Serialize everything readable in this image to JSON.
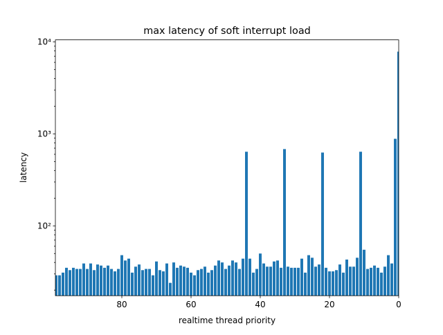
{
  "chart_data": {
    "type": "bar",
    "title": "max latency of soft interrupt load",
    "xlabel": "realtime thread priority",
    "ylabel": "latency",
    "color": "#1f77b4",
    "yscale": "log",
    "bar_width": 0.8,
    "x": [
      99,
      98,
      97,
      96,
      95,
      94,
      93,
      92,
      91,
      90,
      89,
      88,
      87,
      86,
      85,
      84,
      83,
      82,
      81,
      80,
      79,
      78,
      77,
      76,
      75,
      74,
      73,
      72,
      71,
      70,
      69,
      68,
      67,
      66,
      65,
      64,
      63,
      62,
      61,
      60,
      59,
      58,
      57,
      56,
      55,
      54,
      53,
      52,
      51,
      50,
      49,
      48,
      47,
      46,
      45,
      44,
      43,
      42,
      41,
      40,
      39,
      38,
      37,
      36,
      35,
      34,
      33,
      32,
      31,
      30,
      29,
      28,
      27,
      26,
      25,
      24,
      23,
      22,
      21,
      20,
      19,
      18,
      17,
      16,
      15,
      14,
      13,
      12,
      11,
      10,
      9,
      8,
      7,
      6,
      5,
      4,
      3,
      2,
      1,
      0
    ],
    "values": [
      29,
      29,
      31,
      35,
      33,
      35,
      34,
      34,
      39,
      34,
      39,
      33,
      38,
      37,
      35,
      37,
      34,
      32,
      34,
      48,
      42,
      44,
      31,
      36,
      38,
      33,
      34,
      34,
      29,
      41,
      33,
      32,
      39,
      24,
      40,
      35,
      37,
      36,
      35,
      31,
      29,
      33,
      34,
      36,
      31,
      33,
      37,
      42,
      40,
      34,
      37,
      42,
      40,
      34,
      44,
      640,
      44,
      31,
      34,
      50,
      39,
      36,
      36,
      41,
      42,
      35,
      684,
      36,
      35,
      35,
      35,
      44,
      31,
      48,
      45,
      36,
      38,
      627,
      35,
      32,
      32,
      33,
      38,
      31,
      43,
      36,
      36,
      45,
      640,
      55,
      34,
      35,
      37,
      35,
      31,
      36,
      48,
      39,
      885,
      7850
    ],
    "xlim": [
      99.2,
      0
    ],
    "xticks": [
      80,
      60,
      40,
      20,
      0
    ],
    "ylim": [
      17.4,
      10540
    ],
    "yticks": [
      {
        "value": 100,
        "label": "10²"
      },
      {
        "value": 1000,
        "label": "10³"
      },
      {
        "value": 10000,
        "label": "10⁴"
      }
    ],
    "yminorticks": [
      20,
      30,
      40,
      50,
      60,
      70,
      80,
      90,
      200,
      300,
      400,
      500,
      600,
      700,
      800,
      900,
      2000,
      3000,
      4000,
      5000,
      6000,
      7000,
      8000,
      9000
    ]
  }
}
